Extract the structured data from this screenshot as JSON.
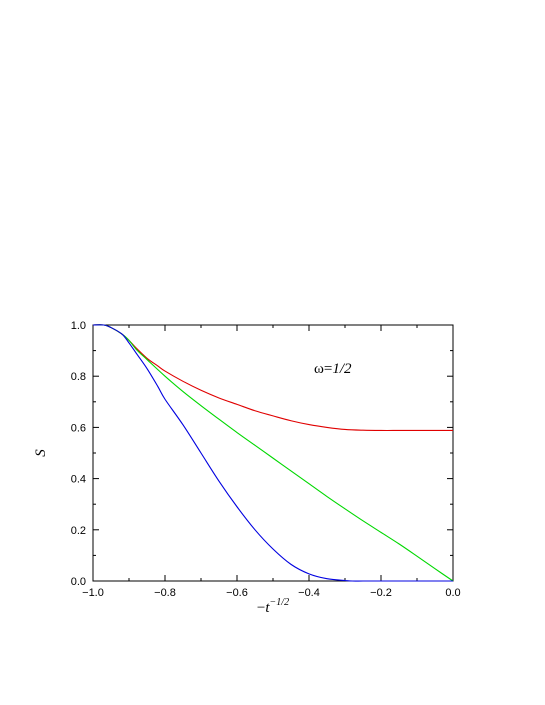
{
  "chart_data": {
    "type": "line",
    "xlabel": {
      "prefix": "−",
      "base": "t",
      "sup": "−1/2"
    },
    "ylabel": "S",
    "xlim": [
      -1.0,
      0.0
    ],
    "ylim": [
      0.0,
      1.0
    ],
    "x_ticks": [
      -1.0,
      -0.8,
      -0.6,
      -0.4,
      -0.2,
      0.0
    ],
    "x_tick_labels": [
      "−1.0",
      "−0.8",
      "−0.6",
      "−0.4",
      "−0.2",
      "0.0"
    ],
    "y_ticks": [
      0.0,
      0.2,
      0.4,
      0.6,
      0.8,
      1.0
    ],
    "y_tick_labels": [
      "0.0",
      "0.2",
      "0.4",
      "0.6",
      "0.8",
      "1.0"
    ],
    "grid": false,
    "annotation": {
      "symbol": "ω",
      "eq": "=",
      "value": "1/2"
    },
    "series": [
      {
        "color": "#e00000",
        "x": [
          -1.0,
          -0.97,
          -0.95,
          -0.92,
          -0.9,
          -0.88,
          -0.85,
          -0.82,
          -0.8,
          -0.75,
          -0.7,
          -0.65,
          -0.6,
          -0.55,
          -0.5,
          -0.45,
          -0.4,
          -0.35,
          -0.3,
          -0.25,
          -0.2,
          -0.15,
          -0.1,
          -0.05,
          0.0
        ],
        "y": [
          1.0,
          1.0,
          0.99,
          0.965,
          0.94,
          0.91,
          0.87,
          0.84,
          0.82,
          0.78,
          0.745,
          0.715,
          0.69,
          0.665,
          0.645,
          0.626,
          0.611,
          0.6,
          0.592,
          0.589,
          0.588,
          0.588,
          0.588,
          0.588,
          0.588
        ]
      },
      {
        "color": "#00d800",
        "x": [
          -1.0,
          -0.97,
          -0.95,
          -0.92,
          -0.9,
          -0.88,
          -0.85,
          -0.8,
          -0.75,
          -0.7,
          -0.65,
          -0.6,
          -0.55,
          -0.5,
          -0.45,
          -0.4,
          -0.35,
          -0.3,
          -0.25,
          -0.2,
          -0.15,
          -0.1,
          -0.05,
          0.0
        ],
        "y": [
          1.0,
          1.0,
          0.99,
          0.965,
          0.94,
          0.905,
          0.865,
          0.8,
          0.74,
          0.685,
          0.632,
          0.58,
          0.53,
          0.48,
          0.43,
          0.38,
          0.33,
          0.282,
          0.235,
          0.19,
          0.145,
          0.097,
          0.048,
          0.0
        ]
      },
      {
        "color": "#0000e0",
        "x": [
          -1.0,
          -0.97,
          -0.95,
          -0.92,
          -0.9,
          -0.88,
          -0.85,
          -0.82,
          -0.8,
          -0.75,
          -0.7,
          -0.65,
          -0.6,
          -0.55,
          -0.5,
          -0.45,
          -0.4,
          -0.35,
          -0.3,
          -0.28,
          -0.25,
          -0.2,
          -0.1,
          0.0
        ],
        "y": [
          1.0,
          1.0,
          0.99,
          0.965,
          0.93,
          0.89,
          0.83,
          0.76,
          0.71,
          0.61,
          0.5,
          0.39,
          0.29,
          0.2,
          0.125,
          0.065,
          0.028,
          0.009,
          0.002,
          0.0,
          0.0,
          0.0,
          0.0,
          0.0
        ]
      }
    ]
  }
}
